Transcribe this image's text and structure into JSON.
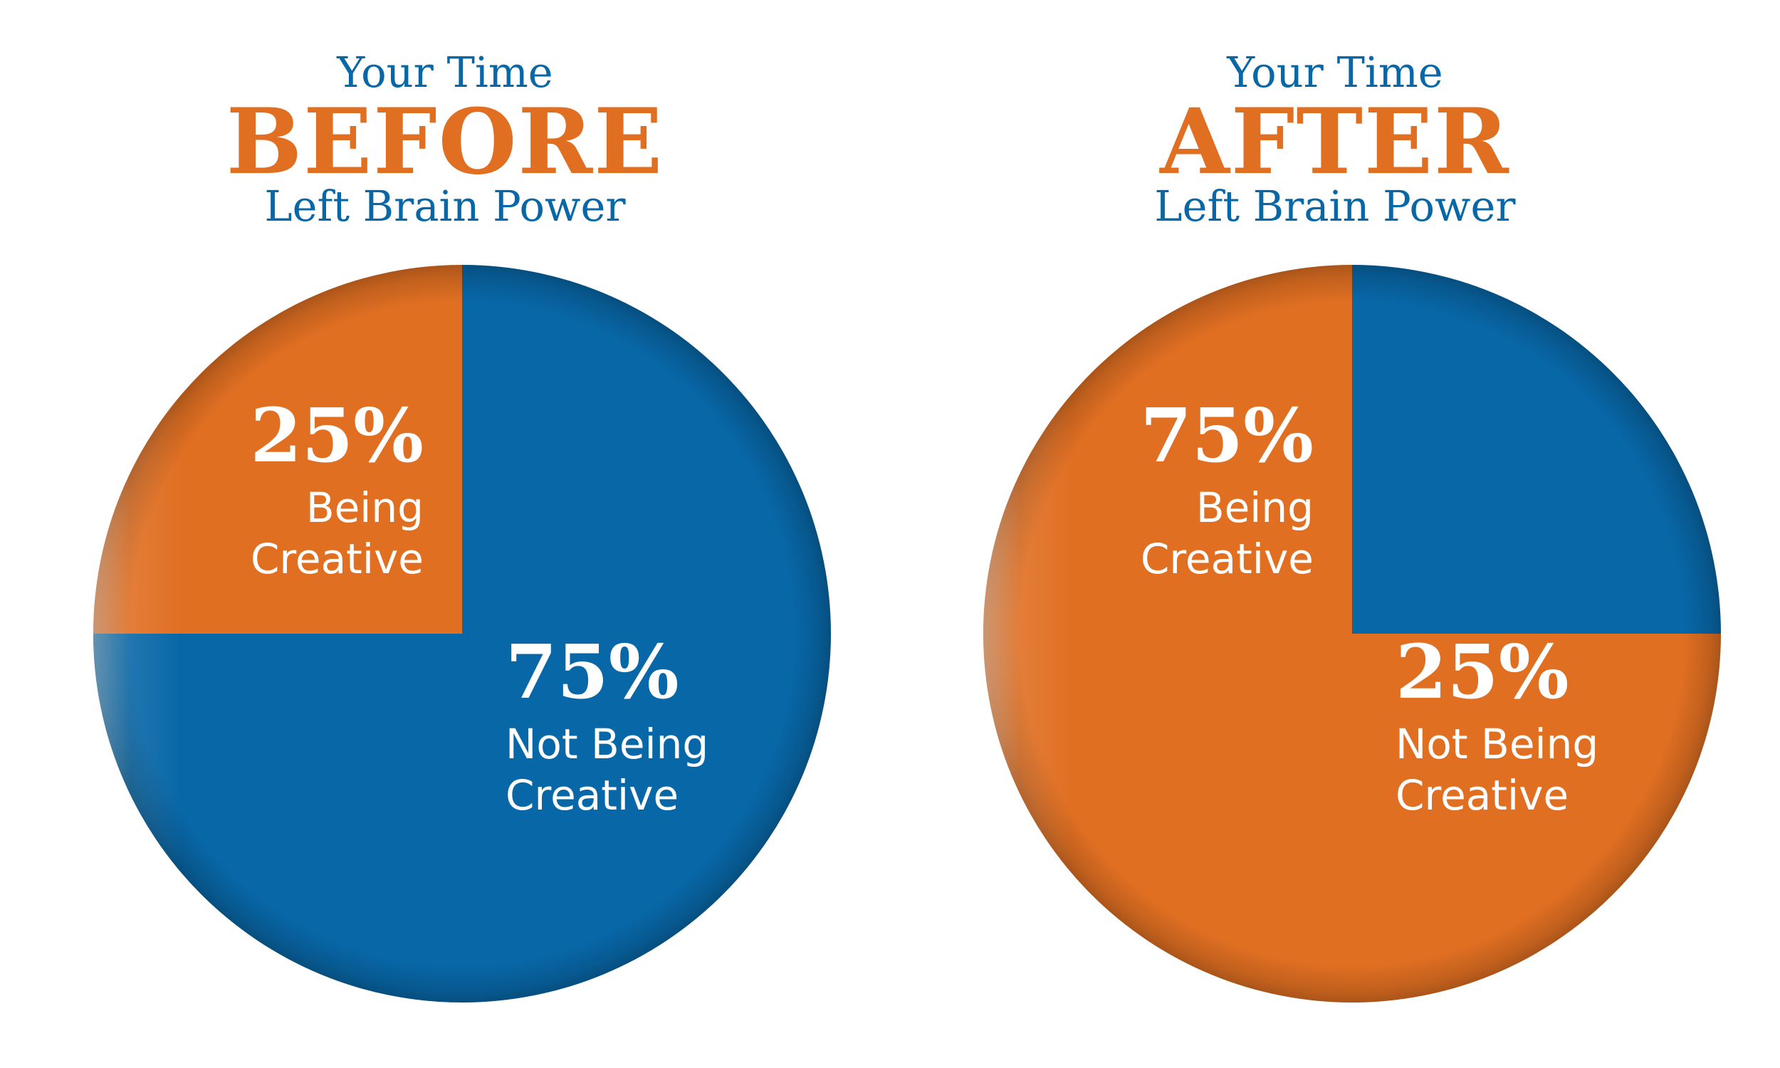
{
  "chart_data": [
    {
      "type": "pie",
      "title_lines": [
        "Your Time",
        "BEFORE",
        "Left Brain Power"
      ],
      "slices": [
        {
          "value": 25,
          "percent_label": "25%",
          "label_lines": [
            "Being",
            "Creative"
          ],
          "color": "#e06f22"
        },
        {
          "value": 75,
          "percent_label": "75%",
          "label_lines": [
            "Not Being",
            "Creative"
          ],
          "color": "#0867a7"
        }
      ]
    },
    {
      "type": "pie",
      "title_lines": [
        "Your Time",
        "AFTER",
        "Left Brain Power"
      ],
      "slices": [
        {
          "value": 75,
          "percent_label": "75%",
          "label_lines": [
            "Being",
            "Creative"
          ],
          "color": "#e06f22"
        },
        {
          "value": 25,
          "percent_label": "25%",
          "label_lines": [
            "Not Being",
            "Creative"
          ],
          "color": "#0867a7"
        }
      ]
    }
  ],
  "colors": {
    "orange": "#e06f22",
    "blue": "#0867a7",
    "label_text": "#ffffff",
    "background": "#ffffff"
  }
}
